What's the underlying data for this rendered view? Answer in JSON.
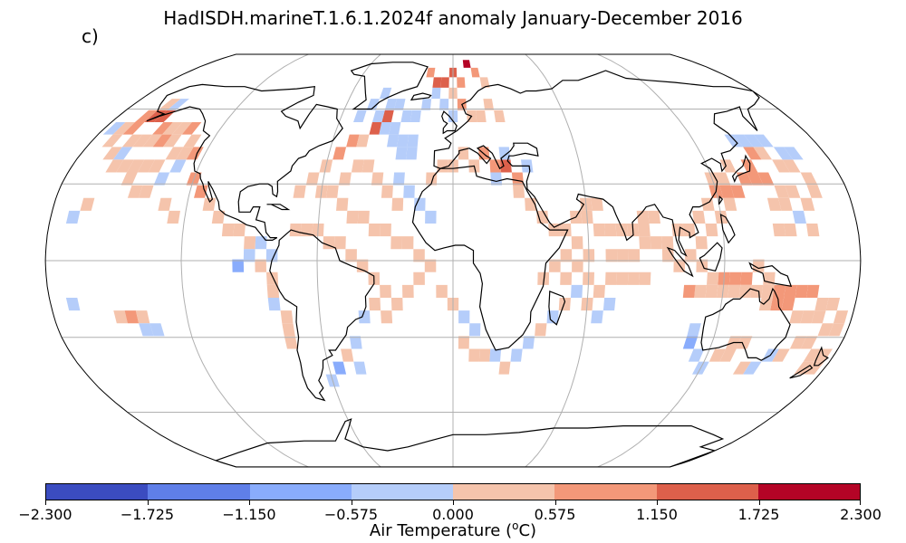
{
  "title": "HadISDH.marineT.1.6.1.2024f anomaly January-December 2016",
  "panel_label": "c)",
  "projection": "Robinson",
  "gridlines": true,
  "colorbar": {
    "label_prefix": "Air Temperature (",
    "label_sup": "o",
    "label_suffix": "C)",
    "ticks": [
      "−2.300",
      "−1.725",
      "−1.150",
      "−0.575",
      "0.000",
      "0.575",
      "1.150",
      "1.725",
      "2.300"
    ],
    "colors": [
      "#3b4cc0",
      "#5f7fe8",
      "#89acfc",
      "#b5cdfa",
      "#f5c4ac",
      "#f39879",
      "#dd604b",
      "#b40426"
    ]
  },
  "map_data": {
    "grid_resolution_deg": 5,
    "cells_lon_lat_bin": [
      [
        -165,
        57,
        5
      ],
      [
        -160,
        57,
        6
      ],
      [
        -155,
        57,
        6
      ],
      [
        -150,
        52,
        5
      ],
      [
        -145,
        52,
        4
      ],
      [
        -140,
        52,
        4
      ],
      [
        -135,
        52,
        5
      ],
      [
        -130,
        47,
        4
      ],
      [
        -125,
        42,
        5
      ],
      [
        -120,
        32,
        5
      ],
      [
        -115,
        27,
        5
      ],
      [
        -110,
        22,
        4
      ],
      [
        -105,
        17,
        4
      ],
      [
        -100,
        12,
        4
      ],
      [
        -95,
        12,
        4
      ],
      [
        -90,
        7,
        4
      ],
      [
        -85,
        7,
        3
      ],
      [
        -80,
        2,
        3
      ],
      [
        -170,
        47,
        4
      ],
      [
        -165,
        42,
        4
      ],
      [
        -160,
        42,
        3
      ],
      [
        -155,
        37,
        4
      ],
      [
        -150,
        32,
        4
      ],
      [
        -145,
        27,
        4
      ],
      [
        -140,
        27,
        4
      ],
      [
        -135,
        32,
        3
      ],
      [
        -130,
        22,
        4
      ],
      [
        -125,
        17,
        4
      ],
      [
        -130,
        37,
        3
      ],
      [
        -170,
        17,
        3
      ],
      [
        -165,
        22,
        4
      ],
      [
        -175,
        52,
        3
      ],
      [
        -170,
        52,
        4
      ],
      [
        -165,
        52,
        5
      ],
      [
        -160,
        47,
        4
      ],
      [
        -155,
        47,
        4
      ],
      [
        -150,
        47,
        4
      ],
      [
        -145,
        47,
        5
      ],
      [
        -140,
        47,
        4
      ],
      [
        -135,
        42,
        4
      ],
      [
        -130,
        42,
        4
      ],
      [
        -140,
        37,
        4
      ],
      [
        -145,
        37,
        4
      ],
      [
        -150,
        37,
        4
      ],
      [
        -160,
        37,
        4
      ],
      [
        -150,
        -22,
        4
      ],
      [
        -145,
        -22,
        5
      ],
      [
        -140,
        -22,
        4
      ],
      [
        -140,
        -27,
        3
      ],
      [
        -135,
        -27,
        3
      ],
      [
        -85,
        -2,
        4
      ],
      [
        -80,
        -7,
        4
      ],
      [
        -80,
        -12,
        4
      ],
      [
        -80,
        -17,
        3
      ],
      [
        -75,
        -22,
        4
      ],
      [
        -75,
        -27,
        4
      ],
      [
        -75,
        -32,
        4
      ],
      [
        -90,
        2,
        3
      ],
      [
        -95,
        -2,
        2
      ],
      [
        -70,
        27,
        4
      ],
      [
        -65,
        32,
        4
      ],
      [
        -60,
        37,
        4
      ],
      [
        -55,
        42,
        5
      ],
      [
        -50,
        47,
        5
      ],
      [
        -45,
        47,
        4
      ],
      [
        -40,
        52,
        6
      ],
      [
        -35,
        57,
        6
      ],
      [
        -60,
        27,
        4
      ],
      [
        -55,
        27,
        4
      ],
      [
        -50,
        32,
        4
      ],
      [
        -45,
        37,
        4
      ],
      [
        -40,
        37,
        4
      ],
      [
        -35,
        32,
        4
      ],
      [
        -30,
        27,
        4
      ],
      [
        -25,
        22,
        4
      ],
      [
        -50,
        22,
        4
      ],
      [
        -45,
        17,
        4
      ],
      [
        -40,
        17,
        4
      ],
      [
        -35,
        12,
        4
      ],
      [
        -30,
        12,
        4
      ],
      [
        -25,
        7,
        4
      ],
      [
        -20,
        7,
        4
      ],
      [
        -15,
        2,
        4
      ],
      [
        -70,
        12,
        4
      ],
      [
        -65,
        12,
        4
      ],
      [
        -60,
        12,
        4
      ],
      [
        -55,
        7,
        4
      ],
      [
        -50,
        7,
        4
      ],
      [
        -45,
        2,
        4
      ],
      [
        -40,
        -2,
        4
      ],
      [
        -35,
        -7,
        4
      ],
      [
        -30,
        -12,
        4
      ],
      [
        -35,
        -17,
        4
      ],
      [
        -30,
        -22,
        4
      ],
      [
        -25,
        -17,
        4
      ],
      [
        -20,
        -12,
        4
      ],
      [
        -15,
        -7,
        4
      ],
      [
        -10,
        -2,
        4
      ],
      [
        -5,
        -12,
        4
      ],
      [
        0,
        -17,
        4
      ],
      [
        -40,
        57,
        3
      ],
      [
        -35,
        52,
        3
      ],
      [
        -30,
        52,
        3
      ],
      [
        -30,
        47,
        3
      ],
      [
        -25,
        47,
        3
      ],
      [
        -20,
        47,
        3
      ],
      [
        -25,
        42,
        3
      ],
      [
        -20,
        42,
        3
      ],
      [
        -35,
        62,
        3
      ],
      [
        -30,
        62,
        3
      ],
      [
        -25,
        57,
        3
      ],
      [
        -20,
        57,
        3
      ],
      [
        -15,
        62,
        3
      ],
      [
        -10,
        67,
        3
      ],
      [
        -5,
        62,
        3
      ],
      [
        0,
        57,
        3
      ],
      [
        -45,
        -42,
        3
      ],
      [
        -50,
        -37,
        4
      ],
      [
        -45,
        -32,
        3
      ],
      [
        -40,
        -22,
        3
      ],
      [
        -55,
        -42,
        2
      ],
      [
        -60,
        -47,
        3
      ],
      [
        5,
        -22,
        3
      ],
      [
        10,
        -27,
        3
      ],
      [
        5,
        -32,
        4
      ],
      [
        10,
        -37,
        4
      ],
      [
        15,
        -37,
        4
      ],
      [
        20,
        -37,
        3
      ],
      [
        25,
        -42,
        4
      ],
      [
        30,
        -37,
        3
      ],
      [
        35,
        -32,
        3
      ],
      [
        40,
        -27,
        4
      ],
      [
        45,
        -22,
        3
      ],
      [
        50,
        -17,
        4
      ],
      [
        55,
        -12,
        3
      ],
      [
        60,
        -17,
        4
      ],
      [
        65,
        -12,
        4
      ],
      [
        65,
        -22,
        3
      ],
      [
        70,
        -17,
        3
      ],
      [
        -10,
        72,
        6
      ],
      [
        -5,
        72,
        6
      ],
      [
        0,
        77,
        6
      ],
      [
        10,
        82,
        7
      ],
      [
        5,
        72,
        5
      ],
      [
        -15,
        77,
        5
      ],
      [
        15,
        77,
        5
      ],
      [
        20,
        72,
        4
      ],
      [
        0,
        67,
        4
      ],
      [
        5,
        62,
        5
      ],
      [
        10,
        57,
        4
      ],
      [
        15,
        57,
        4
      ],
      [
        20,
        62,
        4
      ],
      [
        25,
        57,
        4
      ],
      [
        15,
        42,
        5
      ],
      [
        20,
        37,
        5
      ],
      [
        25,
        37,
        6
      ],
      [
        30,
        32,
        5
      ],
      [
        5,
        42,
        4
      ],
      [
        0,
        37,
        4
      ],
      [
        -5,
        37,
        4
      ],
      [
        -10,
        32,
        4
      ],
      [
        35,
        37,
        3
      ],
      [
        25,
        42,
        3
      ],
      [
        20,
        32,
        3
      ],
      [
        10,
        37,
        4
      ],
      [
        30,
        27,
        4
      ],
      [
        35,
        22,
        4
      ],
      [
        40,
        17,
        4
      ],
      [
        45,
        12,
        4
      ],
      [
        50,
        12,
        4
      ],
      [
        55,
        17,
        4
      ],
      [
        60,
        22,
        4
      ],
      [
        65,
        22,
        4
      ],
      [
        60,
        17,
        4
      ],
      [
        70,
        12,
        4
      ],
      [
        75,
        12,
        4
      ],
      [
        80,
        12,
        4
      ],
      [
        85,
        17,
        4
      ],
      [
        90,
        17,
        4
      ],
      [
        85,
        12,
        4
      ],
      [
        65,
        12,
        4
      ],
      [
        55,
        7,
        4
      ],
      [
        50,
        2,
        4
      ],
      [
        45,
        -2,
        4
      ],
      [
        40,
        -7,
        4
      ],
      [
        50,
        -7,
        4
      ],
      [
        55,
        -2,
        4
      ],
      [
        60,
        2,
        4
      ],
      [
        70,
        2,
        4
      ],
      [
        75,
        2,
        4
      ],
      [
        80,
        2,
        4
      ],
      [
        85,
        7,
        4
      ],
      [
        90,
        7,
        4
      ],
      [
        95,
        7,
        4
      ],
      [
        100,
        12,
        4
      ],
      [
        95,
        2,
        4
      ],
      [
        80,
        -7,
        4
      ],
      [
        85,
        -7,
        4
      ],
      [
        75,
        -7,
        4
      ],
      [
        70,
        -7,
        4
      ],
      [
        60,
        -7,
        4
      ],
      [
        100,
        -2,
        4
      ],
      [
        105,
        2,
        4
      ],
      [
        110,
        -2,
        4
      ],
      [
        115,
        -7,
        4
      ],
      [
        120,
        -7,
        5
      ],
      [
        125,
        -7,
        5
      ],
      [
        130,
        -7,
        5
      ],
      [
        135,
        -2,
        4
      ],
      [
        140,
        -7,
        4
      ],
      [
        110,
        7,
        4
      ],
      [
        115,
        12,
        4
      ],
      [
        120,
        17,
        4
      ],
      [
        125,
        22,
        4
      ],
      [
        110,
        17,
        4
      ],
      [
        105,
        12,
        4
      ],
      [
        115,
        22,
        4
      ],
      [
        120,
        27,
        5
      ],
      [
        125,
        27,
        5
      ],
      [
        130,
        27,
        5
      ],
      [
        135,
        32,
        5
      ],
      [
        140,
        32,
        5
      ],
      [
        145,
        32,
        5
      ],
      [
        150,
        27,
        4
      ],
      [
        140,
        37,
        5
      ],
      [
        145,
        42,
        5
      ],
      [
        150,
        42,
        4
      ],
      [
        155,
        37,
        4
      ],
      [
        130,
        37,
        4
      ],
      [
        125,
        32,
        4
      ],
      [
        120,
        32,
        4
      ],
      [
        145,
        22,
        4
      ],
      [
        150,
        22,
        4
      ],
      [
        155,
        27,
        4
      ],
      [
        155,
        17,
        3
      ],
      [
        150,
        12,
        4
      ],
      [
        145,
        12,
        4
      ],
      [
        160,
        12,
        4
      ],
      [
        160,
        22,
        4
      ],
      [
        165,
        27,
        4
      ],
      [
        165,
        32,
        4
      ],
      [
        160,
        37,
        4
      ],
      [
        165,
        42,
        3
      ],
      [
        135,
        -12,
        4
      ],
      [
        130,
        -12,
        4
      ],
      [
        125,
        -12,
        4
      ],
      [
        120,
        -12,
        4
      ],
      [
        115,
        -12,
        4
      ],
      [
        110,
        -12,
        4
      ],
      [
        105,
        -12,
        5
      ],
      [
        140,
        -12,
        4
      ],
      [
        145,
        -12,
        5
      ],
      [
        150,
        -12,
        5
      ],
      [
        155,
        -12,
        5
      ],
      [
        160,
        -12,
        5
      ],
      [
        165,
        -17,
        4
      ],
      [
        170,
        -17,
        4
      ],
      [
        175,
        -22,
        4
      ],
      [
        150,
        -17,
        5
      ],
      [
        145,
        -17,
        5
      ],
      [
        140,
        -17,
        4
      ],
      [
        155,
        -22,
        4
      ],
      [
        160,
        -22,
        4
      ],
      [
        165,
        -22,
        4
      ],
      [
        170,
        -27,
        4
      ],
      [
        175,
        -27,
        4
      ],
      [
        160,
        -32,
        4
      ],
      [
        165,
        -32,
        4
      ],
      [
        170,
        -37,
        4
      ],
      [
        175,
        -37,
        4
      ],
      [
        175,
        -42,
        4
      ],
      [
        170,
        -42,
        4
      ],
      [
        155,
        -37,
        4
      ],
      [
        110,
        -27,
        3
      ],
      [
        110,
        -32,
        2
      ],
      [
        115,
        -37,
        3
      ],
      [
        120,
        -42,
        3
      ],
      [
        130,
        -37,
        4
      ],
      [
        140,
        -42,
        4
      ],
      [
        145,
        -42,
        3
      ],
      [
        150,
        -37,
        3
      ],
      [
        135,
        -32,
        4
      ],
      [
        130,
        -32,
        4
      ],
      [
        125,
        -37,
        4
      ],
      [
        -170,
        -17,
        3
      ],
      [
        -155,
        62,
        3
      ],
      [
        -160,
        62,
        4
      ],
      [
        -45,
        62,
        3
      ],
      [
        -40,
        67,
        3
      ],
      [
        -50,
        57,
        3
      ],
      [
        160,
        42,
        3
      ],
      [
        155,
        47,
        3
      ],
      [
        150,
        47,
        3
      ],
      [
        145,
        47,
        3
      ],
      [
        140,
        47,
        3
      ],
      [
        -25,
        32,
        3
      ],
      [
        -20,
        27,
        3
      ],
      [
        -15,
        22,
        3
      ],
      [
        -10,
        17,
        3
      ]
    ]
  }
}
